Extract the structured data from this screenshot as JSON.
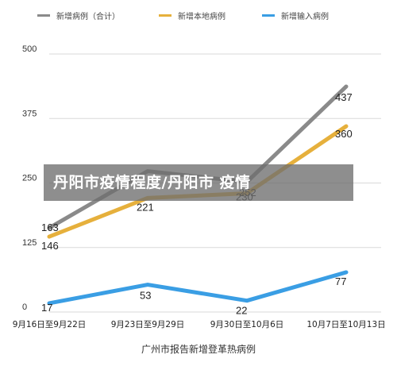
{
  "chart_data": {
    "type": "line",
    "title": "",
    "xlabel": "广州市报告新增登革热病例",
    "ylabel": "",
    "categories": [
      "9月16日至9月22日",
      "9月23日至9月29日",
      "9月30日至10月6日",
      "10月7日至10月13日"
    ],
    "ylim": [
      0,
      500
    ],
    "yticks": [
      0,
      125,
      250,
      375,
      500
    ],
    "grid": true,
    "legend_position": "top",
    "series": [
      {
        "name": "新增病例（合计）",
        "color": "#8a8a8a",
        "values": [
          163,
          273,
          252,
          437
        ],
        "labels": [
          "163",
          "",
          "252",
          "437"
        ]
      },
      {
        "name": "新增本地病例",
        "color": "#e6b03c",
        "values": [
          146,
          221,
          230,
          360
        ],
        "labels": [
          "146",
          "221",
          "230",
          "360"
        ]
      },
      {
        "name": "新增输入病例",
        "color": "#3a9ee4",
        "values": [
          17,
          53,
          22,
          77
        ],
        "labels": [
          "17",
          "53",
          "22",
          "77"
        ]
      }
    ]
  },
  "overlay": {
    "banner_text": "丹阳市疫情程度/丹阳市 疫情"
  }
}
